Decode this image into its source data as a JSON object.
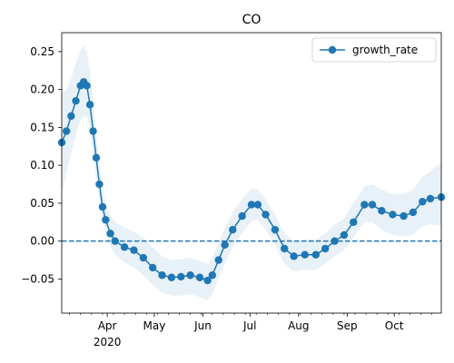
{
  "chart_data": {
    "type": "line",
    "title": "CO",
    "xlabel": "",
    "ylabel": "",
    "x_range": [
      "2020-03-03",
      "2020-10-31"
    ],
    "ylim": [
      -0.095,
      0.275
    ],
    "y_ticks": [
      -0.05,
      0.0,
      0.05,
      0.1,
      0.15,
      0.2,
      0.25
    ],
    "y_tick_labels": [
      "−0.05",
      "0.00",
      "0.05",
      "0.10",
      "0.15",
      "0.20",
      "0.25"
    ],
    "x_ticks": [
      {
        "date": "2020-04-01",
        "label": "Apr",
        "sublabel": "2020"
      },
      {
        "date": "2020-05-01",
        "label": "May"
      },
      {
        "date": "2020-06-01",
        "label": "Jun"
      },
      {
        "date": "2020-07-01",
        "label": "Jul"
      },
      {
        "date": "2020-08-01",
        "label": "Aug"
      },
      {
        "date": "2020-09-01",
        "label": "Sep"
      },
      {
        "date": "2020-10-01",
        "label": "Oct"
      }
    ],
    "reference_line": {
      "y": 0.0,
      "style": "dashed",
      "color": "#1f77b4"
    },
    "legend": {
      "position": "top-right",
      "entries": [
        "growth_rate"
      ]
    },
    "grid": false,
    "series": [
      {
        "name": "growth_rate",
        "color": "#1f77b4",
        "band_color": "#1f77b4",
        "marker": "circle",
        "points": [
          [
            "2020-03-03",
            0.13,
            0.065,
            0.195
          ],
          [
            "2020-03-06",
            0.145,
            0.09,
            0.2
          ],
          [
            "2020-03-09",
            0.165,
            0.115,
            0.215
          ],
          [
            "2020-03-12",
            0.185,
            0.14,
            0.235
          ],
          [
            "2020-03-15",
            0.205,
            0.16,
            0.252
          ],
          [
            "2020-03-17",
            0.21,
            0.165,
            0.258
          ],
          [
            "2020-03-19",
            0.205,
            0.165,
            0.25
          ],
          [
            "2020-03-21",
            0.18,
            0.145,
            0.225
          ],
          [
            "2020-03-23",
            0.145,
            0.115,
            0.185
          ],
          [
            "2020-03-25",
            0.11,
            0.085,
            0.14
          ],
          [
            "2020-03-27",
            0.075,
            0.055,
            0.1
          ],
          [
            "2020-03-29",
            0.045,
            0.025,
            0.07
          ],
          [
            "2020-03-31",
            0.028,
            0.01,
            0.05
          ],
          [
            "2020-04-03",
            0.01,
            -0.008,
            0.035
          ],
          [
            "2020-04-06",
            0.0,
            -0.018,
            0.025
          ],
          [
            "2020-04-12",
            -0.008,
            -0.028,
            0.018
          ],
          [
            "2020-04-18",
            -0.012,
            -0.035,
            0.012
          ],
          [
            "2020-04-24",
            -0.022,
            -0.045,
            0.005
          ],
          [
            "2020-04-30",
            -0.035,
            -0.058,
            -0.008
          ],
          [
            "2020-05-06",
            -0.045,
            -0.068,
            -0.02
          ],
          [
            "2020-05-12",
            -0.048,
            -0.072,
            -0.025
          ],
          [
            "2020-05-18",
            -0.047,
            -0.072,
            -0.024
          ],
          [
            "2020-05-24",
            -0.045,
            -0.07,
            -0.022
          ],
          [
            "2020-05-30",
            -0.048,
            -0.074,
            -0.026
          ],
          [
            "2020-06-04",
            -0.052,
            -0.078,
            -0.03
          ],
          [
            "2020-06-07",
            -0.045,
            -0.07,
            -0.022
          ],
          [
            "2020-06-11",
            -0.025,
            -0.05,
            -0.002
          ],
          [
            "2020-06-15",
            -0.005,
            -0.03,
            0.018
          ],
          [
            "2020-06-20",
            0.015,
            -0.008,
            0.038
          ],
          [
            "2020-06-26",
            0.033,
            0.01,
            0.056
          ],
          [
            "2020-07-02",
            0.048,
            0.026,
            0.07
          ],
          [
            "2020-07-06",
            0.048,
            0.028,
            0.068
          ],
          [
            "2020-07-11",
            0.035,
            0.015,
            0.055
          ],
          [
            "2020-07-17",
            0.015,
            -0.005,
            0.035
          ],
          [
            "2020-07-23",
            -0.01,
            -0.03,
            0.01
          ],
          [
            "2020-07-29",
            -0.02,
            -0.04,
            0.0
          ],
          [
            "2020-08-05",
            -0.018,
            -0.038,
            0.002
          ],
          [
            "2020-08-12",
            -0.018,
            -0.038,
            0.002
          ],
          [
            "2020-08-18",
            -0.01,
            -0.03,
            0.01
          ],
          [
            "2020-08-24",
            0.0,
            -0.02,
            0.022
          ],
          [
            "2020-08-30",
            0.008,
            -0.012,
            0.03
          ],
          [
            "2020-09-05",
            0.025,
            0.005,
            0.05
          ],
          [
            "2020-09-12",
            0.048,
            0.025,
            0.072
          ],
          [
            "2020-09-17",
            0.048,
            0.025,
            0.075
          ],
          [
            "2020-09-23",
            0.04,
            0.015,
            0.068
          ],
          [
            "2020-09-30",
            0.035,
            0.008,
            0.062
          ],
          [
            "2020-10-07",
            0.033,
            0.006,
            0.062
          ],
          [
            "2020-10-13",
            0.038,
            0.008,
            0.068
          ],
          [
            "2020-10-19",
            0.052,
            0.02,
            0.085
          ],
          [
            "2020-10-24",
            0.056,
            0.022,
            0.092
          ],
          [
            "2020-10-31",
            0.058,
            0.02,
            0.105
          ]
        ]
      }
    ]
  }
}
